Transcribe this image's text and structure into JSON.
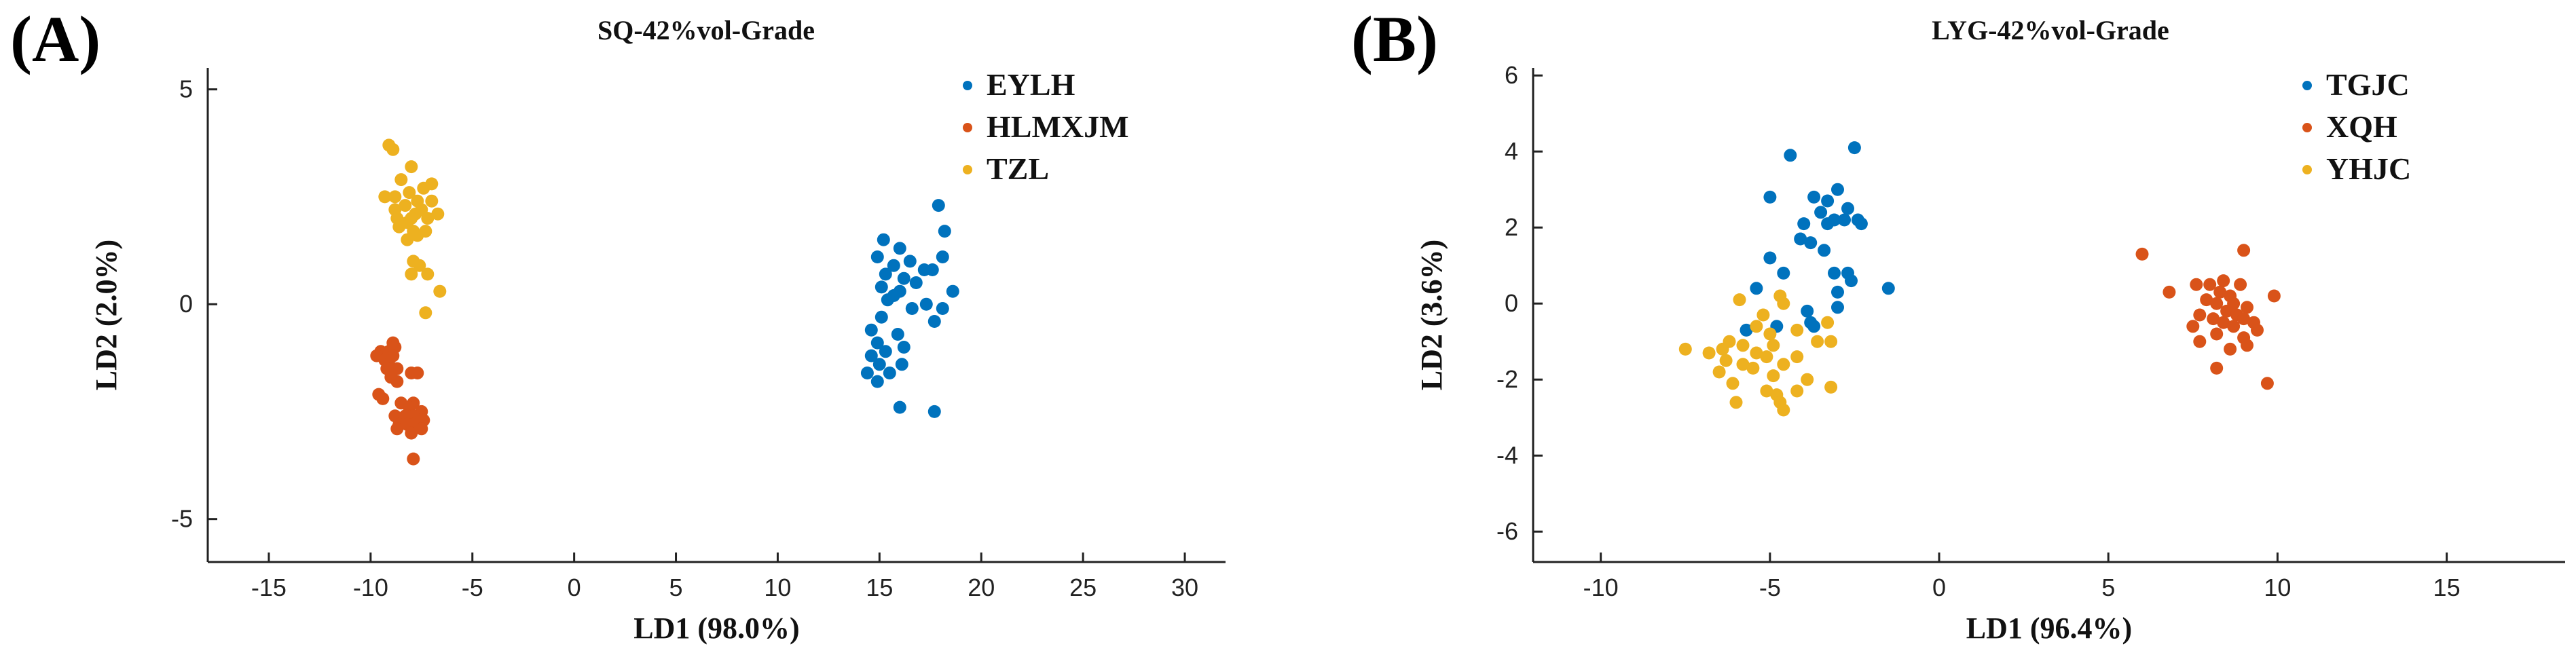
{
  "chart_data": [
    {
      "type": "scatter",
      "panel_label": "(A)",
      "title": "SQ-42%vol-Grade",
      "xlabel": "LD1 (98.0%)",
      "ylabel": "LD2 (2.0%)",
      "xlim": [
        -18,
        32
      ],
      "ylim": [
        -6,
        5.5
      ],
      "xticks": [
        -15,
        -10,
        -5,
        0,
        5,
        10,
        15,
        20,
        25,
        30
      ],
      "yticks": [
        -5,
        0,
        5
      ],
      "legend_position": "top-right",
      "series": [
        {
          "name": "EYLH",
          "color": "#0072BD",
          "points": [
            [
              17.9,
              2.3
            ],
            [
              18.2,
              1.7
            ],
            [
              15.2,
              1.5
            ],
            [
              16.0,
              1.3
            ],
            [
              18.1,
              1.1
            ],
            [
              14.9,
              1.1
            ],
            [
              16.5,
              1.0
            ],
            [
              15.7,
              0.9
            ],
            [
              17.6,
              0.8
            ],
            [
              17.2,
              0.8
            ],
            [
              15.3,
              0.7
            ],
            [
              16.2,
              0.6
            ],
            [
              16.8,
              0.5
            ],
            [
              15.1,
              0.4
            ],
            [
              16.0,
              0.3
            ],
            [
              18.6,
              0.3
            ],
            [
              15.7,
              0.2
            ],
            [
              15.4,
              0.1
            ],
            [
              17.3,
              0.0
            ],
            [
              16.6,
              -0.1
            ],
            [
              18.1,
              -0.1
            ],
            [
              15.1,
              -0.3
            ],
            [
              17.7,
              -0.4
            ],
            [
              14.6,
              -0.6
            ],
            [
              15.9,
              -0.7
            ],
            [
              14.9,
              -0.9
            ],
            [
              16.2,
              -1.0
            ],
            [
              15.3,
              -1.1
            ],
            [
              14.6,
              -1.2
            ],
            [
              15.0,
              -1.4
            ],
            [
              16.1,
              -1.4
            ],
            [
              14.4,
              -1.6
            ],
            [
              15.5,
              -1.6
            ],
            [
              14.9,
              -1.8
            ],
            [
              16.0,
              -2.4
            ],
            [
              17.7,
              -2.5
            ]
          ]
        },
        {
          "name": "HLMXJM",
          "color": "#D95319",
          "points": [
            [
              -8.9,
              -0.9
            ],
            [
              -8.8,
              -1.0
            ],
            [
              -9.5,
              -1.1
            ],
            [
              -9.1,
              -1.1
            ],
            [
              -9.7,
              -1.2
            ],
            [
              -8.9,
              -1.2
            ],
            [
              -9.3,
              -1.3
            ],
            [
              -9.1,
              -1.4
            ],
            [
              -8.7,
              -1.5
            ],
            [
              -9.2,
              -1.5
            ],
            [
              -8.0,
              -1.6
            ],
            [
              -7.7,
              -1.6
            ],
            [
              -9.0,
              -1.7
            ],
            [
              -8.7,
              -1.8
            ],
            [
              -9.6,
              -2.1
            ],
            [
              -9.4,
              -2.2
            ],
            [
              -8.5,
              -2.3
            ],
            [
              -7.9,
              -2.3
            ],
            [
              -8.1,
              -2.4
            ],
            [
              -7.5,
              -2.5
            ],
            [
              -8.8,
              -2.6
            ],
            [
              -8.3,
              -2.6
            ],
            [
              -7.9,
              -2.6
            ],
            [
              -7.4,
              -2.7
            ],
            [
              -8.6,
              -2.8
            ],
            [
              -8.2,
              -2.8
            ],
            [
              -7.9,
              -2.8
            ],
            [
              -8.7,
              -2.9
            ],
            [
              -7.5,
              -2.9
            ],
            [
              -8.0,
              -3.0
            ],
            [
              -7.9,
              -3.6
            ]
          ]
        },
        {
          "name": "TZL",
          "color": "#EDB120",
          "points": [
            [
              -9.1,
              3.7
            ],
            [
              -8.9,
              3.6
            ],
            [
              -8.0,
              3.2
            ],
            [
              -8.5,
              2.9
            ],
            [
              -7.0,
              2.8
            ],
            [
              -7.4,
              2.7
            ],
            [
              -8.1,
              2.6
            ],
            [
              -8.8,
              2.5
            ],
            [
              -9.3,
              2.5
            ],
            [
              -7.7,
              2.4
            ],
            [
              -7.0,
              2.4
            ],
            [
              -8.3,
              2.3
            ],
            [
              -8.8,
              2.2
            ],
            [
              -7.5,
              2.2
            ],
            [
              -7.8,
              2.1
            ],
            [
              -6.7,
              2.1
            ],
            [
              -8.7,
              2.0
            ],
            [
              -8.0,
              2.0
            ],
            [
              -7.2,
              2.0
            ],
            [
              -8.2,
              1.9
            ],
            [
              -8.6,
              1.8
            ],
            [
              -7.9,
              1.7
            ],
            [
              -7.3,
              1.7
            ],
            [
              -7.7,
              1.6
            ],
            [
              -8.2,
              1.5
            ],
            [
              -7.9,
              1.0
            ],
            [
              -7.6,
              0.9
            ],
            [
              -8.0,
              0.7
            ],
            [
              -7.2,
              0.7
            ],
            [
              -6.6,
              0.3
            ],
            [
              -7.3,
              -0.2
            ]
          ]
        }
      ]
    },
    {
      "type": "scatter",
      "panel_label": "(B)",
      "title": "LYG-42%vol-Grade",
      "xlabel": "LD1 (96.4%)",
      "ylabel": "LD2 (3.6%)",
      "xlim": [
        -12,
        18.5
      ],
      "ylim": [
        -6.8,
        6.2
      ],
      "xticks": [
        -10,
        -5,
        0,
        5,
        10,
        15
      ],
      "yticks": [
        -6,
        -4,
        -2,
        0,
        2,
        4,
        6
      ],
      "legend_position": "top-right",
      "series": [
        {
          "name": "TGJC",
          "color": "#0072BD",
          "points": [
            [
              -2.5,
              4.1
            ],
            [
              -4.4,
              3.9
            ],
            [
              -3.0,
              3.0
            ],
            [
              -3.7,
              2.8
            ],
            [
              -5.0,
              2.8
            ],
            [
              -3.3,
              2.7
            ],
            [
              -2.7,
              2.5
            ],
            [
              -3.5,
              2.4
            ],
            [
              -3.1,
              2.2
            ],
            [
              -2.4,
              2.2
            ],
            [
              -2.8,
              2.2
            ],
            [
              -3.3,
              2.1
            ],
            [
              -4.0,
              2.1
            ],
            [
              -2.3,
              2.1
            ],
            [
              -4.1,
              1.7
            ],
            [
              -3.8,
              1.6
            ],
            [
              -3.4,
              1.4
            ],
            [
              -5.0,
              1.2
            ],
            [
              -4.6,
              0.8
            ],
            [
              -3.1,
              0.8
            ],
            [
              -2.7,
              0.8
            ],
            [
              -2.6,
              0.6
            ],
            [
              -5.4,
              0.4
            ],
            [
              -1.5,
              0.4
            ],
            [
              -3.0,
              0.3
            ],
            [
              -3.0,
              -0.1
            ],
            [
              -3.9,
              -0.2
            ],
            [
              -3.8,
              -0.5
            ],
            [
              -3.7,
              -0.6
            ],
            [
              -4.8,
              -0.6
            ],
            [
              -5.7,
              -0.7
            ]
          ]
        },
        {
          "name": "XQH",
          "color": "#D95319",
          "points": [
            [
              6.0,
              1.3
            ],
            [
              9.0,
              1.4
            ],
            [
              8.4,
              0.6
            ],
            [
              7.6,
              0.5
            ],
            [
              8.0,
              0.5
            ],
            [
              8.9,
              0.5
            ],
            [
              6.8,
              0.3
            ],
            [
              8.3,
              0.3
            ],
            [
              8.6,
              0.2
            ],
            [
              9.9,
              0.2
            ],
            [
              7.9,
              0.1
            ],
            [
              8.2,
              0.0
            ],
            [
              8.7,
              0.0
            ],
            [
              9.1,
              -0.1
            ],
            [
              8.5,
              -0.2
            ],
            [
              7.7,
              -0.3
            ],
            [
              8.8,
              -0.3
            ],
            [
              8.1,
              -0.4
            ],
            [
              9.0,
              -0.4
            ],
            [
              8.4,
              -0.5
            ],
            [
              9.3,
              -0.5
            ],
            [
              7.5,
              -0.6
            ],
            [
              8.7,
              -0.6
            ],
            [
              9.4,
              -0.7
            ],
            [
              8.2,
              -0.8
            ],
            [
              9.0,
              -0.9
            ],
            [
              7.7,
              -1.0
            ],
            [
              9.1,
              -1.1
            ],
            [
              8.6,
              -1.2
            ],
            [
              8.2,
              -1.7
            ],
            [
              9.7,
              -2.1
            ]
          ]
        },
        {
          "name": "YHJC",
          "color": "#EDB120",
          "points": [
            [
              -4.7,
              0.2
            ],
            [
              -5.9,
              0.1
            ],
            [
              -4.6,
              0.0
            ],
            [
              -5.2,
              -0.3
            ],
            [
              -3.3,
              -0.5
            ],
            [
              -5.4,
              -0.6
            ],
            [
              -4.2,
              -0.7
            ],
            [
              -5.0,
              -0.8
            ],
            [
              -3.2,
              -1.0
            ],
            [
              -3.6,
              -1.0
            ],
            [
              -6.2,
              -1.0
            ],
            [
              -5.8,
              -1.1
            ],
            [
              -4.9,
              -1.1
            ],
            [
              -7.5,
              -1.2
            ],
            [
              -6.4,
              -1.2
            ],
            [
              -5.4,
              -1.3
            ],
            [
              -6.8,
              -1.3
            ],
            [
              -5.1,
              -1.4
            ],
            [
              -4.2,
              -1.4
            ],
            [
              -6.3,
              -1.5
            ],
            [
              -4.6,
              -1.6
            ],
            [
              -5.8,
              -1.6
            ],
            [
              -5.5,
              -1.7
            ],
            [
              -6.5,
              -1.8
            ],
            [
              -4.9,
              -1.9
            ],
            [
              -3.9,
              -2.0
            ],
            [
              -6.1,
              -2.1
            ],
            [
              -3.2,
              -2.2
            ],
            [
              -5.1,
              -2.3
            ],
            [
              -4.2,
              -2.3
            ],
            [
              -4.8,
              -2.4
            ],
            [
              -6.0,
              -2.6
            ],
            [
              -4.7,
              -2.6
            ],
            [
              -4.6,
              -2.8
            ]
          ]
        }
      ]
    }
  ]
}
